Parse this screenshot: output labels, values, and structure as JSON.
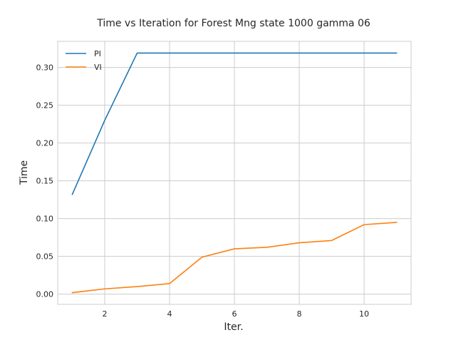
{
  "chart_data": {
    "type": "line",
    "title": "Time vs Iteration for Forest Mng state 1000 gamma 06",
    "xlabel": "Iter.",
    "ylabel": "Time",
    "xlim": [
      0.55,
      11.45
    ],
    "ylim": [
      -0.0135,
      0.3345
    ],
    "xticks": [
      2,
      4,
      6,
      8,
      10
    ],
    "yticks": [
      0.0,
      0.05,
      0.1,
      0.15,
      0.2,
      0.25,
      0.3
    ],
    "ytick_labels": [
      "0.00",
      "0.05",
      "0.10",
      "0.15",
      "0.20",
      "0.25",
      "0.30"
    ],
    "grid": true,
    "legend_position": "top-left",
    "x": [
      1,
      2,
      3,
      4,
      5,
      6,
      7,
      8,
      9,
      10,
      11
    ],
    "series": [
      {
        "name": "PI",
        "color": "#1f77b4",
        "values": [
          0.132,
          0.23,
          0.319,
          0.319,
          0.319,
          0.319,
          0.319,
          0.319,
          0.319,
          0.319,
          0.319
        ]
      },
      {
        "name": "VI",
        "color": "#ff7f0e",
        "values": [
          0.002,
          0.007,
          0.01,
          0.014,
          0.049,
          0.06,
          0.062,
          0.068,
          0.071,
          0.092,
          0.095
        ]
      }
    ]
  }
}
